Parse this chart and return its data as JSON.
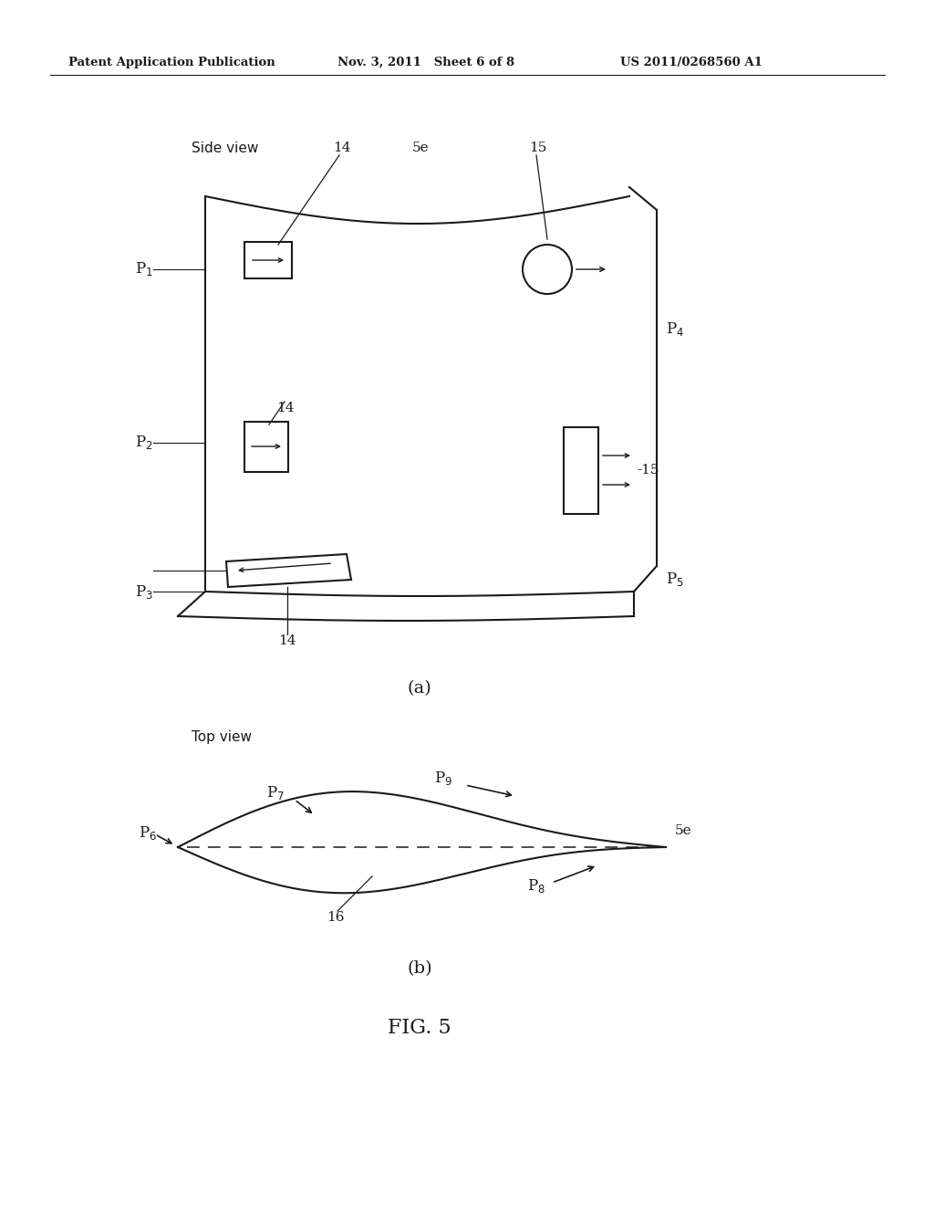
{
  "header_left": "Patent Application Publication",
  "header_mid": "Nov. 3, 2011   Sheet 6 of 8",
  "header_right": "US 2011/0268560 A1",
  "fig_label": "FIG. 5",
  "sub_a_label": "(a)",
  "sub_b_label": "(b)",
  "side_view_label": "Side view",
  "top_view_label": "Top view",
  "bg_color": "#ffffff",
  "line_color": "#1a1a1a"
}
